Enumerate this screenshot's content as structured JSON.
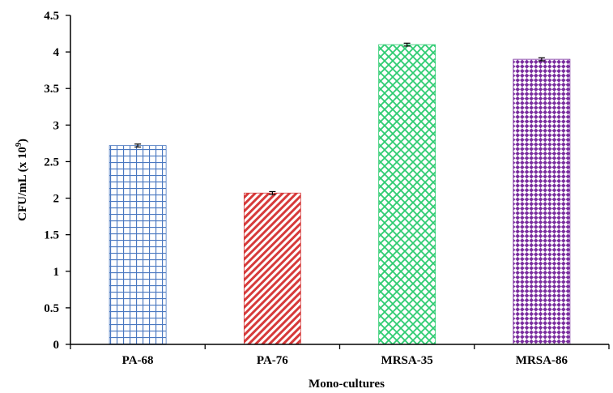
{
  "chart_data": {
    "type": "bar",
    "xlabel": "Mono-cultures",
    "ylabel": {
      "main": "CFU/mL  (x 10",
      "superscript": "9",
      "close": ")"
    },
    "ylim": [
      0,
      4.5
    ],
    "yticks": [
      "0",
      "0.5",
      "1",
      "1.5",
      "2",
      "2.5",
      "3",
      "3.5",
      "4",
      "4.5"
    ],
    "categories": [
      "PA-68",
      "PA-76",
      "MRSA-35",
      "MRSA-86"
    ],
    "values": [
      2.72,
      2.07,
      4.1,
      3.9
    ],
    "error": [
      0.02,
      0.02,
      0.02,
      0.02
    ],
    "bars": [
      {
        "pattern": "grid",
        "color": "#4a78c0"
      },
      {
        "pattern": "diagonal-stripes",
        "color": "#d63a3a"
      },
      {
        "pattern": "diamond-lattice",
        "color": "#2ecc71"
      },
      {
        "pattern": "checkerboard",
        "color": "#7a2d9e"
      }
    ],
    "grid": false,
    "legend": "none"
  }
}
